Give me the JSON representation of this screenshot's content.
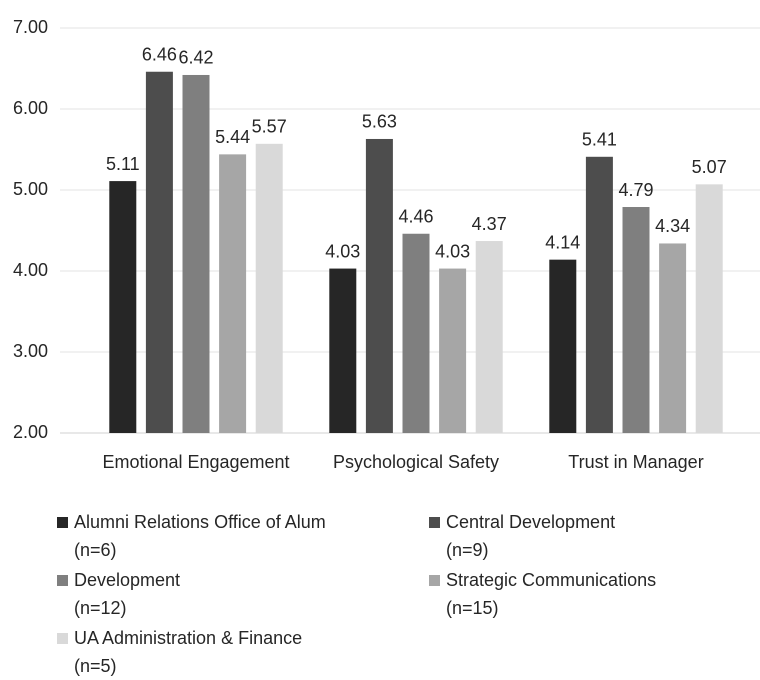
{
  "chart_data": {
    "type": "bar",
    "categories": [
      "Emotional Engagement",
      "Psychological Safety",
      "Trust in Manager"
    ],
    "series": [
      {
        "name": "Alumni Relations Office of Alum\n(n=6)",
        "color": "#262626",
        "values": [
          5.11,
          4.03,
          4.14
        ]
      },
      {
        "name": "Central Development\n(n=9)",
        "color": "#4d4d4d",
        "values": [
          6.46,
          5.63,
          5.41
        ]
      },
      {
        "name": "Development\n(n=12)",
        "color": "#7f7f7f",
        "values": [
          6.42,
          4.46,
          4.79
        ]
      },
      {
        "name": "Strategic Communications\n(n=15)",
        "color": "#a6a6a6",
        "values": [
          5.44,
          4.03,
          4.34
        ]
      },
      {
        "name": "UA Administration & Finance\n(n=5)",
        "color": "#d9d9d9",
        "values": [
          5.57,
          4.37,
          5.07
        ]
      }
    ],
    "ylim": [
      2,
      7
    ],
    "yticks": [
      {
        "value": 2,
        "label": "2.00"
      },
      {
        "value": 3,
        "label": "3.00"
      },
      {
        "value": 4,
        "label": "4.00"
      },
      {
        "value": 5,
        "label": "5.00"
      },
      {
        "value": 6,
        "label": "6.00"
      },
      {
        "value": 7,
        "label": "7.00"
      }
    ],
    "grid": true,
    "legend": "bottom"
  }
}
